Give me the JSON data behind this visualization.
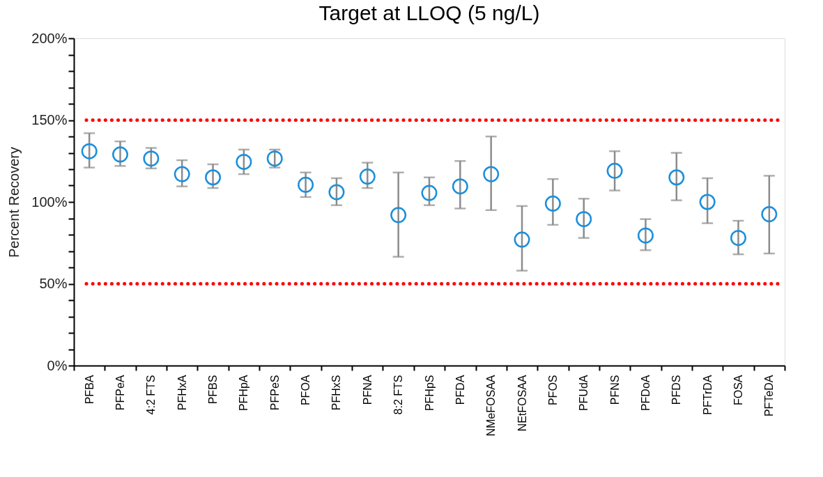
{
  "chart_data": {
    "type": "scatter",
    "title": "Target at LLOQ (5 ng/L)",
    "ylabel": "Percent Recovery",
    "categories": [
      "PFBA",
      "PFPeA",
      "4:2 FTS",
      "PFHxA",
      "PFBS",
      "PFHpA",
      "PFPeS",
      "PFOA",
      "PFHxS",
      "PFNA",
      "8:2 FTS",
      "PFHpS",
      "PFDA",
      "NMeFOSAA",
      "NEtFOSAA",
      "PFOS",
      "PFUdA",
      "PFNS",
      "PFDoA",
      "PFDS",
      "PFTrDA",
      "FOSA",
      "PFTeDA"
    ],
    "series": [
      {
        "color": "#1a8fdb",
        "values": [
          131,
          129,
          126.5,
          117,
          115,
          124.5,
          126.5,
          110.5,
          106,
          115.5,
          92,
          105.5,
          109.5,
          117,
          77,
          99,
          89.5,
          119,
          79.5,
          115,
          100,
          78,
          92.5
        ],
        "errors": [
          [
            121,
            142
          ],
          [
            122,
            137
          ],
          [
            120.5,
            133
          ],
          [
            109.5,
            125.5
          ],
          [
            108.5,
            123
          ],
          [
            117,
            132
          ],
          [
            121,
            132
          ],
          [
            103,
            118
          ],
          [
            98,
            114.5
          ],
          [
            108.5,
            124
          ],
          [
            66.5,
            118
          ],
          [
            98,
            115
          ],
          [
            96,
            125
          ],
          [
            95,
            140
          ],
          [
            58,
            97.5
          ],
          [
            86,
            114
          ],
          [
            78,
            102
          ],
          [
            107,
            131
          ],
          [
            70.5,
            89.5
          ],
          [
            101,
            130
          ],
          [
            87,
            114.5
          ],
          [
            68,
            88.5
          ],
          [
            68.5,
            116
          ]
        ]
      }
    ],
    "marker": "circle",
    "ylim": [
      0,
      200
    ],
    "yticks": [
      {
        "value": 0,
        "label": "0%"
      },
      {
        "value": 10,
        "label": null
      },
      {
        "value": 20,
        "label": null
      },
      {
        "value": 30,
        "label": null
      },
      {
        "value": 40,
        "label": null
      },
      {
        "value": 50,
        "label": "50%"
      },
      {
        "value": 60,
        "label": null
      },
      {
        "value": 70,
        "label": null
      },
      {
        "value": 80,
        "label": null
      },
      {
        "value": 90,
        "label": null
      },
      {
        "value": 100,
        "label": "100%"
      },
      {
        "value": 110,
        "label": null
      },
      {
        "value": 120,
        "label": null
      },
      {
        "value": 130,
        "label": null
      },
      {
        "value": 140,
        "label": null
      },
      {
        "value": 150,
        "label": "150%"
      },
      {
        "value": 160,
        "label": null
      },
      {
        "value": 170,
        "label": null
      },
      {
        "value": 180,
        "label": null
      },
      {
        "value": 190,
        "label": null
      },
      {
        "value": 200,
        "label": "200%"
      }
    ],
    "ref_lines": [
      {
        "axis": "y",
        "value": 150,
        "color": "#ff0000",
        "line_style": "dotted"
      },
      {
        "axis": "y",
        "value": 50,
        "color": "#ff0000",
        "line_style": "dotted"
      }
    ],
    "grid": false
  }
}
